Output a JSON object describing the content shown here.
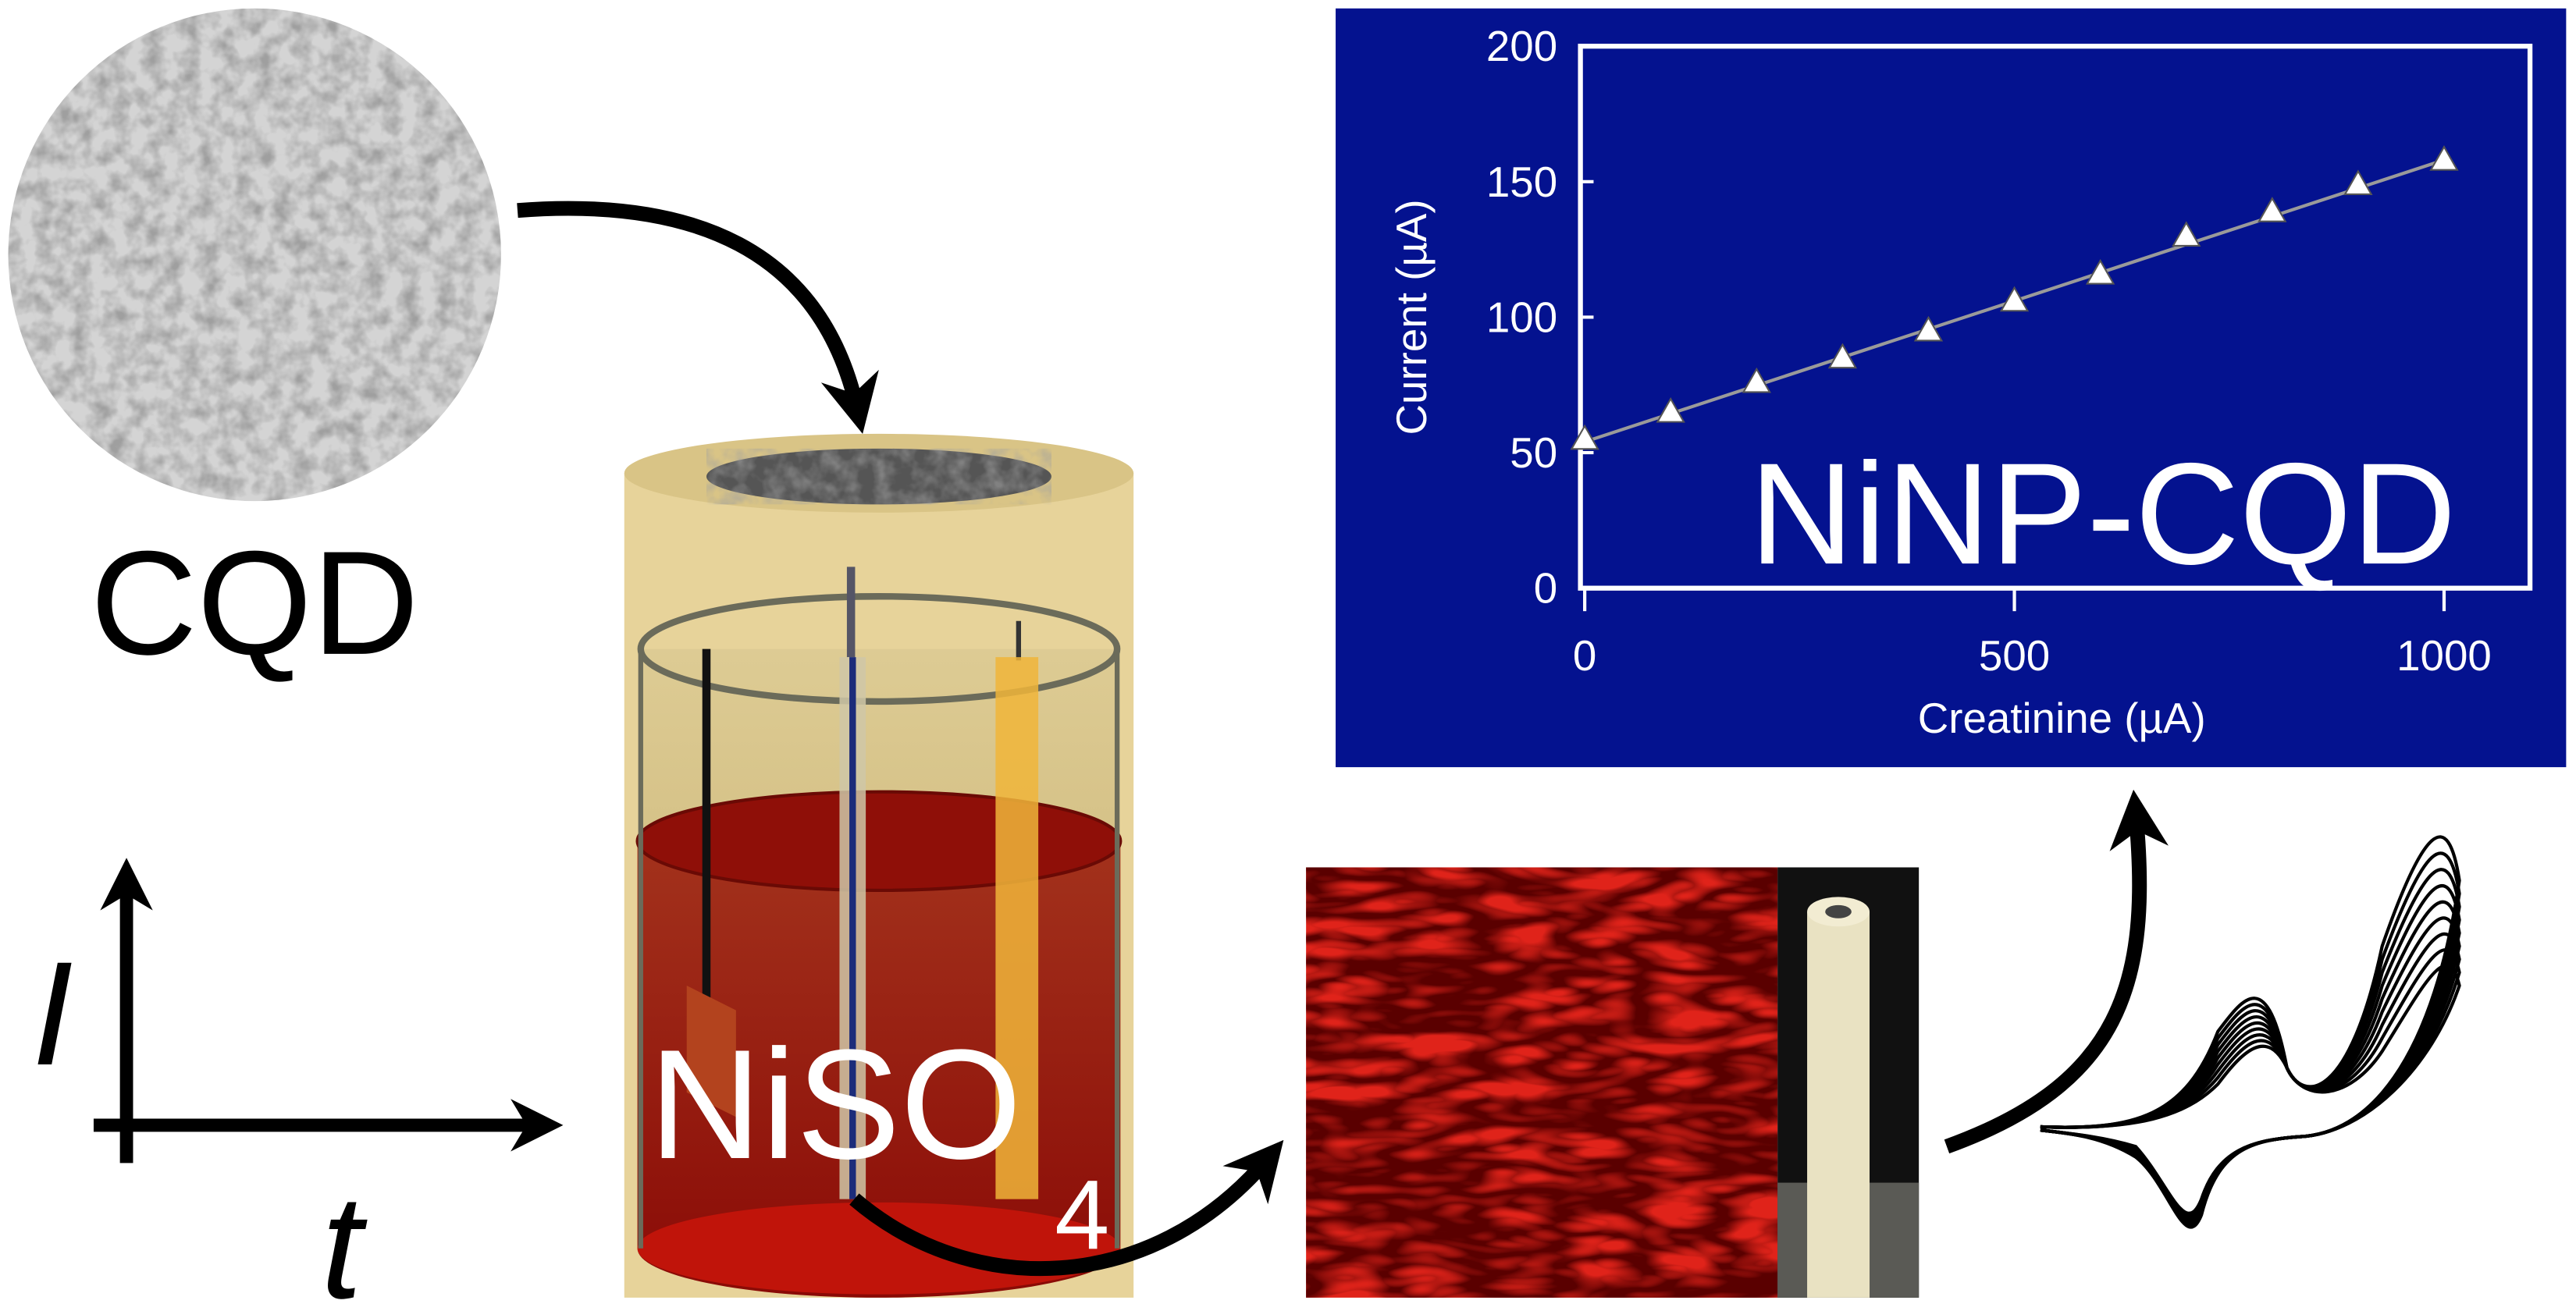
{
  "labels": {
    "cqd": "CQD",
    "current_axis": "I",
    "time_axis": "t",
    "solution": "NiSO",
    "solution_subscript": "4"
  },
  "chart_data": {
    "type": "scatter",
    "annotation": "NiNP-CQD",
    "x_label": "Creatinine (µA)",
    "y_label": "Current (µA)",
    "x": [
      0,
      100,
      200,
      300,
      400,
      500,
      600,
      700,
      800,
      900,
      1000
    ],
    "series": [
      {
        "color": "#ffffff",
        "values": [
          55,
          65,
          76,
          85,
          95,
          106,
          116,
          130,
          139,
          149,
          158
        ]
      }
    ],
    "trendline": {
      "x": [
        0,
        1000
      ],
      "values": [
        54,
        158
      ],
      "color": "#9a9a9a"
    },
    "background": "#04128f",
    "xlim": [
      -5,
      1100
    ],
    "ylim": [
      0,
      200
    ],
    "xticks": [
      0,
      500,
      1000
    ],
    "yticks": [
      0,
      50,
      100,
      150,
      200
    ]
  }
}
